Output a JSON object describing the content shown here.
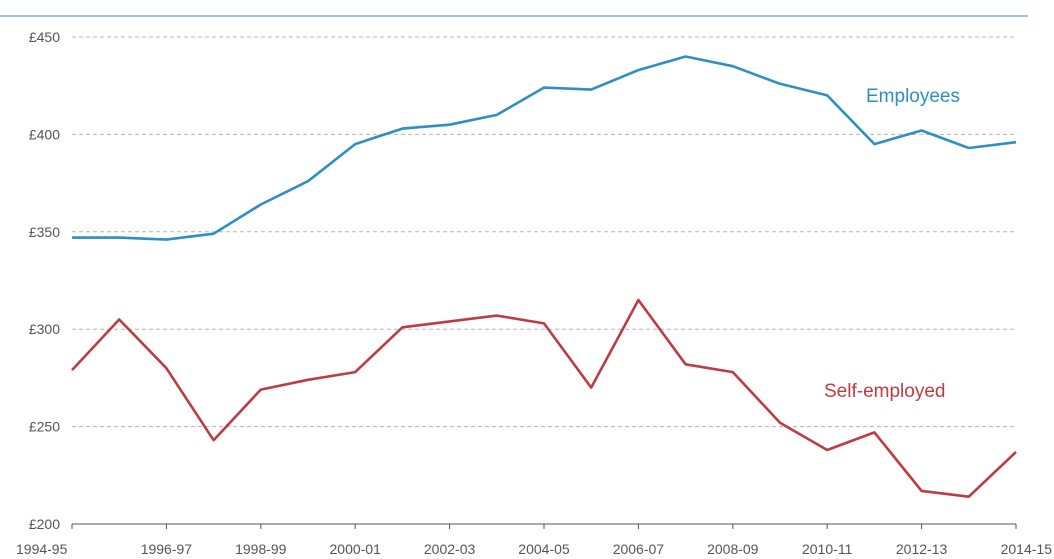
{
  "chart_data": {
    "type": "line",
    "title": "",
    "xlabel": "",
    "ylabel": "",
    "ylim": [
      200,
      450
    ],
    "y_ticks": [
      200,
      250,
      300,
      350,
      400,
      450
    ],
    "y_tick_labels": [
      "£200",
      "£250",
      "£300",
      "£350",
      "£400",
      "£450"
    ],
    "categories": [
      "1994-95",
      "1995-96",
      "1996-97",
      "1997-98",
      "1998-99",
      "1999-00",
      "2000-01",
      "2001-02",
      "2002-03",
      "2003-04",
      "2004-05",
      "2005-06",
      "2006-07",
      "2007-08",
      "2008-09",
      "2009-10",
      "2010-11",
      "2011-12",
      "2012-13",
      "2013-14",
      "2014-15"
    ],
    "x_tick_labels": [
      "1994-95",
      "",
      "1996-97",
      "",
      "1998-99",
      "",
      "2000-01",
      "",
      "2002-03",
      "",
      "2004-05",
      "",
      "2006-07",
      "",
      "2008-09",
      "",
      "2010-11",
      "",
      "2012-13",
      "",
      "2014-15"
    ],
    "grid": true,
    "series": [
      {
        "name": "Employees",
        "color": "#2e8fc4",
        "values": [
          347,
          347,
          346,
          349,
          364,
          376,
          395,
          403,
          405,
          410,
          424,
          423,
          433,
          440,
          435,
          426,
          420,
          395,
          402,
          393,
          396
        ]
      },
      {
        "name": "Self-employed",
        "color": "#bd3c44",
        "values": [
          279,
          305,
          280,
          243,
          269,
          274,
          278,
          301,
          304,
          307,
          303,
          270,
          315,
          282,
          278,
          252,
          238,
          247,
          217,
          214,
          237
        ]
      }
    ]
  }
}
